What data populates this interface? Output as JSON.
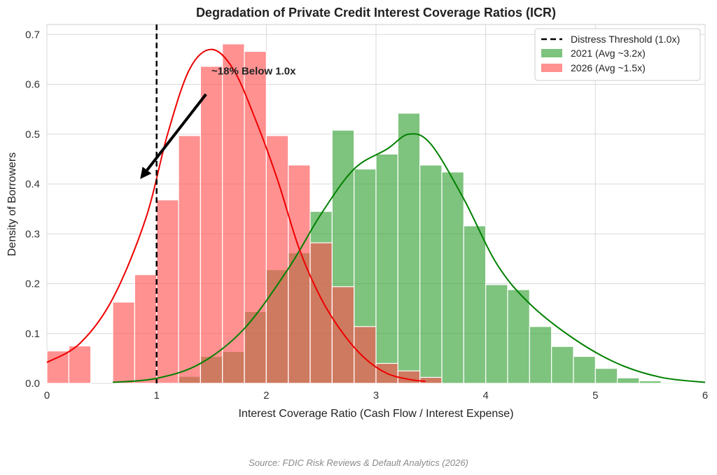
{
  "chart_data": {
    "type": "bar",
    "title": "Degradation of Private Credit Interest Coverage Ratios (ICR)",
    "xlabel": "Interest Coverage Ratio (Cash Flow / Interest Expense)",
    "ylabel": "Density of Borrowers",
    "xlim": [
      0,
      6
    ],
    "ylim": [
      0,
      0.72
    ],
    "xticks": [
      0,
      1,
      2,
      3,
      4,
      5,
      6
    ],
    "yticks": [
      0.0,
      0.1,
      0.2,
      0.3,
      0.4,
      0.5,
      0.6,
      0.7
    ],
    "ytick_labels": [
      "0.0",
      "0.1",
      "0.2",
      "0.3",
      "0.4",
      "0.5",
      "0.6",
      "0.7"
    ],
    "grid": true,
    "legend_position": "top-right",
    "threshold": {
      "label": "Distress Threshold (1.0x)",
      "x": 1.0,
      "color": "#000000"
    },
    "series": [
      {
        "name": "2021 (Avg ~3.2x)",
        "color": "#2e9e2e",
        "kde_color": "#008000",
        "bin_start": 0.6,
        "bin_width": 0.2,
        "values": [
          0.0,
          0.0,
          0.0,
          0.014,
          0.054,
          0.064,
          0.144,
          0.228,
          0.262,
          0.345,
          0.508,
          0.43,
          0.46,
          0.542,
          0.438,
          0.424,
          0.316,
          0.198,
          0.188,
          0.114,
          0.074,
          0.054,
          0.03,
          0.011,
          0.005,
          0.002,
          0.001
        ],
        "kde": [
          [
            0.6,
            0.002
          ],
          [
            1.0,
            0.01
          ],
          [
            1.4,
            0.04
          ],
          [
            1.8,
            0.11
          ],
          [
            2.2,
            0.23
          ],
          [
            2.5,
            0.34
          ],
          [
            2.8,
            0.43
          ],
          [
            3.1,
            0.47
          ],
          [
            3.3,
            0.5
          ],
          [
            3.5,
            0.48
          ],
          [
            3.8,
            0.37
          ],
          [
            4.1,
            0.24
          ],
          [
            4.4,
            0.16
          ],
          [
            4.8,
            0.09
          ],
          [
            5.2,
            0.04
          ],
          [
            5.6,
            0.012
          ],
          [
            6.0,
            0.002
          ]
        ]
      },
      {
        "name": "2026 (Avg ~1.5x)",
        "color": "#ff4d4d",
        "kde_color": "#ee0000",
        "bin_start": 0.0,
        "bin_width": 0.2,
        "values": [
          0.065,
          0.075,
          0.0,
          0.163,
          0.218,
          0.368,
          0.497,
          0.636,
          0.681,
          0.666,
          0.497,
          0.438,
          0.282,
          0.194,
          0.114,
          0.04,
          0.025,
          0.012
        ],
        "kde": [
          [
            0.0,
            0.042
          ],
          [
            0.3,
            0.08
          ],
          [
            0.6,
            0.17
          ],
          [
            0.9,
            0.33
          ],
          [
            1.1,
            0.5
          ],
          [
            1.3,
            0.63
          ],
          [
            1.5,
            0.67
          ],
          [
            1.7,
            0.63
          ],
          [
            1.9,
            0.53
          ],
          [
            2.1,
            0.41
          ],
          [
            2.3,
            0.27
          ],
          [
            2.5,
            0.17
          ],
          [
            2.7,
            0.1
          ],
          [
            2.9,
            0.05
          ],
          [
            3.1,
            0.02
          ],
          [
            3.3,
            0.008
          ],
          [
            3.45,
            0.004
          ]
        ]
      }
    ],
    "annotation": {
      "text": "~18% Below 1.0x",
      "text_x": 1.5,
      "text_y": 0.62,
      "arrow_from": [
        1.45,
        0.58
      ],
      "arrow_to": [
        0.85,
        0.41
      ]
    },
    "source": "Source: FDIC Risk Reviews & Default Analytics (2026)"
  }
}
